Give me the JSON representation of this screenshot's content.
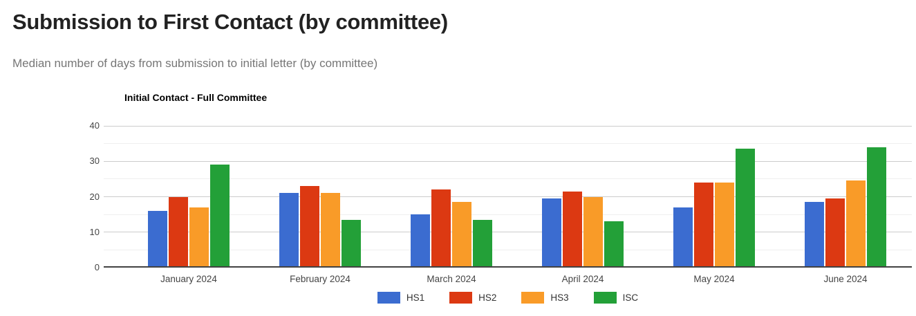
{
  "page": {
    "title": "Submission to First Contact (by committee)",
    "subtitle": "Median number of days from submission to initial letter (by committee)"
  },
  "chart_data": {
    "type": "bar",
    "title": "Initial Contact - Full Committee",
    "categories": [
      "January 2024",
      "February 2024",
      "March 2024",
      "April 2024",
      "May 2024",
      "June 2024"
    ],
    "series": [
      {
        "name": "HS1",
        "color": "#3B6CD0",
        "values": [
          16,
          21,
          15,
          19.5,
          17,
          18.5
        ]
      },
      {
        "name": "HS2",
        "color": "#DC3912",
        "values": [
          20,
          23,
          22,
          21.5,
          24,
          19.5
        ]
      },
      {
        "name": "HS3",
        "color": "#F99B28",
        "values": [
          17,
          21,
          18.5,
          20,
          24,
          24.5
        ]
      },
      {
        "name": "ISC",
        "color": "#23A038",
        "values": [
          29,
          13.5,
          13.5,
          13,
          33.5,
          34
        ]
      }
    ],
    "xlabel": "",
    "ylabel": "",
    "ylim": [
      0,
      40
    ],
    "yticks": [
      0,
      10,
      20,
      30,
      40
    ],
    "minor_gridlines": [
      5,
      15,
      25,
      35
    ],
    "grid": true,
    "legend_position": "bottom"
  }
}
